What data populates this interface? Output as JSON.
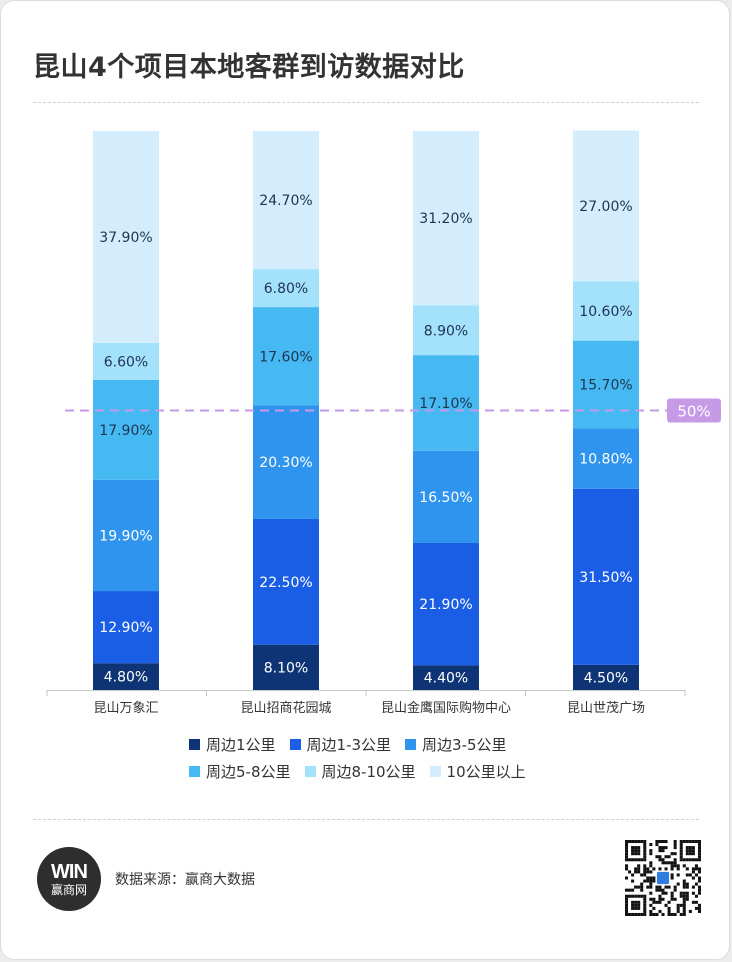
{
  "title": "昆山4个项目本地客群到访数据对比",
  "source": "数据来源：赢商大数据",
  "logo": {
    "mark": "WIN",
    "text": "赢商网"
  },
  "reference_line": {
    "label": "50%",
    "value": 50,
    "color": "#c79ae8"
  },
  "chart_data": {
    "type": "bar",
    "stacked": true,
    "orientation": "vertical",
    "categories": [
      "昆山万象汇",
      "昆山招商花园城",
      "昆山金鹰国际购物中心",
      "昆山世茂广场"
    ],
    "series": [
      {
        "name": "周边1公里",
        "color": "#0f3475",
        "label_color": "#ffffff",
        "values": [
          4.8,
          8.1,
          4.4,
          4.5
        ],
        "labels": [
          "4.80%",
          "8.10%",
          "4.40%",
          "4.50%"
        ]
      },
      {
        "name": "周边1-3公里",
        "color": "#1a5ee6",
        "label_color": "#ffffff",
        "values": [
          12.9,
          22.5,
          21.9,
          31.5
        ],
        "labels": [
          "12.90%",
          "22.50%",
          "21.90%",
          "31.50%"
        ]
      },
      {
        "name": "周边3-5公里",
        "color": "#2f94ed",
        "label_color": "#ffffff",
        "values": [
          19.9,
          20.3,
          16.5,
          10.8
        ],
        "labels": [
          "19.90%",
          "20.30%",
          "16.50%",
          "10.80%"
        ]
      },
      {
        "name": "周边5-8公里",
        "color": "#46b8f2",
        "label_color": "#1f3550",
        "values": [
          17.9,
          17.6,
          17.1,
          15.7
        ],
        "labels": [
          "17.90%",
          "17.60%",
          "17.10%",
          "15.70%"
        ]
      },
      {
        "name": "周边8-10公里",
        "color": "#a4e1fb",
        "label_color": "#1f3550",
        "values": [
          6.6,
          6.8,
          8.9,
          10.6
        ],
        "labels": [
          "6.60%",
          "6.80%",
          "8.90%",
          "10.60%"
        ]
      },
      {
        "name": "10公里以上",
        "color": "#d4edfd",
        "label_color": "#1f3550",
        "values": [
          37.9,
          24.7,
          31.2,
          27.0
        ],
        "labels": [
          "37.90%",
          "24.70%",
          "31.20%",
          "27.00%"
        ]
      }
    ],
    "ylim": [
      0,
      100
    ],
    "grid": false,
    "legend_position": "bottom"
  }
}
